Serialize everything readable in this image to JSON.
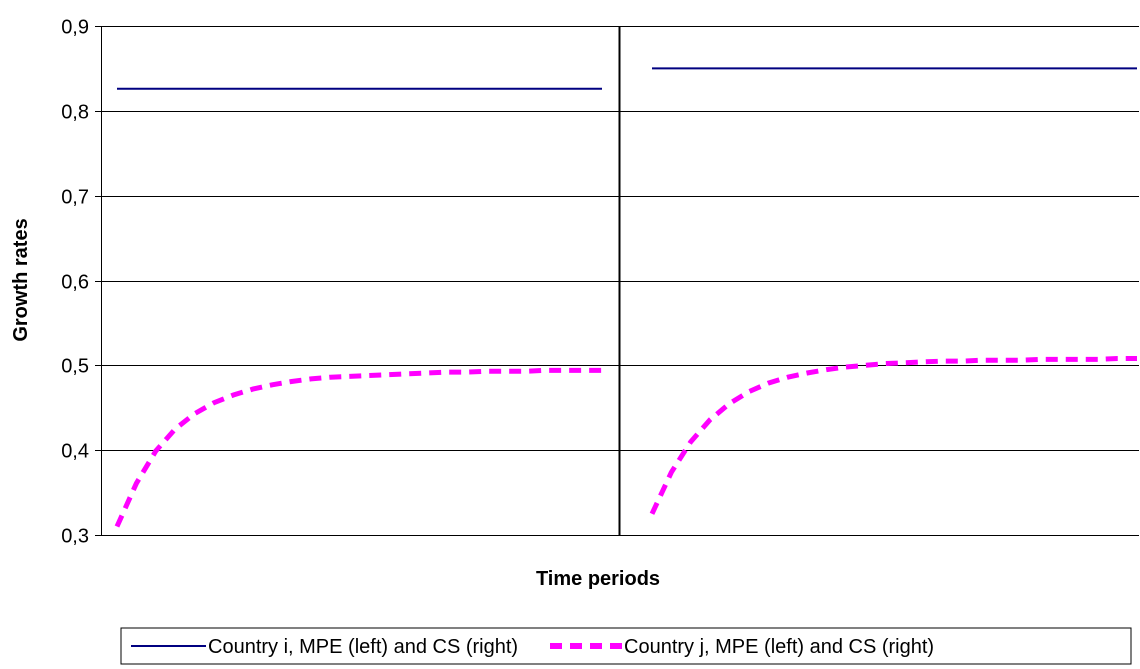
{
  "chart_data": {
    "type": "line",
    "title": "",
    "xlabel": "Time periods",
    "ylabel": "Growth rates",
    "ylim": [
      0.3,
      0.9
    ],
    "yticks": [
      "0,3",
      "0,4",
      "0,5",
      "0,6",
      "0,7",
      "0,8",
      "0,9"
    ],
    "ytick_values": [
      0.3,
      0.4,
      0.5,
      0.6,
      0.7,
      0.8,
      0.9
    ],
    "grid": true,
    "legend_position": "bottom",
    "panels": [
      "MPE (left)",
      "CS (right)"
    ],
    "series": [
      {
        "name": "Country i, MPE (left) and CS (right)",
        "style": "solid",
        "color": "#000080",
        "left": [
          0.826,
          0.826,
          0.826,
          0.826,
          0.826,
          0.826,
          0.826,
          0.826,
          0.826,
          0.826,
          0.826,
          0.826,
          0.826,
          0.826,
          0.826,
          0.826,
          0.826,
          0.826,
          0.826,
          0.826,
          0.826,
          0.826,
          0.826,
          0.826,
          0.826,
          0.826
        ],
        "right": [
          0.85,
          0.85,
          0.85,
          0.85,
          0.85,
          0.85,
          0.85,
          0.85,
          0.85,
          0.85,
          0.85,
          0.85,
          0.85,
          0.85,
          0.85,
          0.85,
          0.85,
          0.85,
          0.85,
          0.85,
          0.85,
          0.85,
          0.85,
          0.85,
          0.85,
          0.85
        ]
      },
      {
        "name": "Country j, MPE (left) and CS (right)",
        "style": "dashed",
        "color": "#FF00FF",
        "left": [
          0.31,
          0.361,
          0.399,
          0.425,
          0.443,
          0.456,
          0.465,
          0.472,
          0.477,
          0.481,
          0.484,
          0.486,
          0.487,
          0.488,
          0.489,
          0.49,
          0.491,
          0.492,
          0.492,
          0.493,
          0.493,
          0.493,
          0.494,
          0.494,
          0.494,
          0.494
        ],
        "right": [
          0.325,
          0.374,
          0.41,
          0.436,
          0.455,
          0.469,
          0.479,
          0.486,
          0.491,
          0.495,
          0.498,
          0.5,
          0.502,
          0.503,
          0.504,
          0.505,
          0.505,
          0.506,
          0.506,
          0.506,
          0.507,
          0.507,
          0.507,
          0.507,
          0.508,
          0.508
        ]
      }
    ]
  }
}
